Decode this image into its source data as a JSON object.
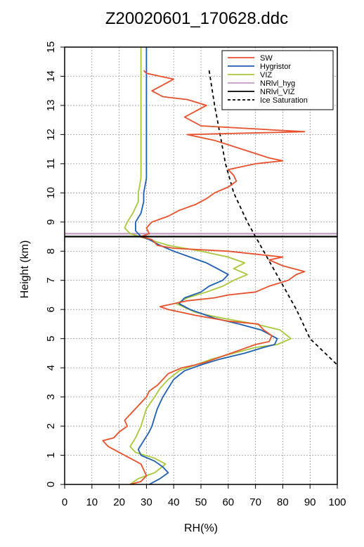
{
  "chart_data": {
    "type": "line",
    "title": "Z20020601_170628.ddc",
    "xlabel": "RH(%)",
    "ylabel": "Height (km)",
    "xlim": [
      0,
      100
    ],
    "ylim": [
      0,
      15
    ],
    "xticks": [
      "0",
      "10",
      "20",
      "30",
      "40",
      "50",
      "60",
      "70",
      "80",
      "90",
      "100"
    ],
    "yticks": [
      "0",
      "1",
      "2",
      "3",
      "4",
      "5",
      "6",
      "7",
      "8",
      "9",
      "10",
      "11",
      "12",
      "13",
      "14",
      "15"
    ],
    "grid": true,
    "legend_position": "top-right",
    "series": [
      {
        "name": "SW",
        "color": "#e8502c",
        "dash": "solid",
        "points": [
          [
            24,
            0
          ],
          [
            28,
            0.1
          ],
          [
            30,
            0.3
          ],
          [
            29,
            0.5
          ],
          [
            28,
            0.7
          ],
          [
            24,
            0.9
          ],
          [
            20,
            1.1
          ],
          [
            16,
            1.3
          ],
          [
            14,
            1.5
          ],
          [
            18,
            1.6
          ],
          [
            20,
            1.8
          ],
          [
            23,
            2
          ],
          [
            22,
            2.2
          ],
          [
            24,
            2.4
          ],
          [
            26,
            2.6
          ],
          [
            28,
            2.8
          ],
          [
            30,
            3
          ],
          [
            31,
            3.2
          ],
          [
            34,
            3.4
          ],
          [
            36,
            3.6
          ],
          [
            38,
            3.8
          ],
          [
            43,
            4
          ],
          [
            48,
            4.1
          ],
          [
            52,
            4.2
          ],
          [
            58,
            4.4
          ],
          [
            64,
            4.6
          ],
          [
            70,
            4.8
          ],
          [
            75,
            4.9
          ],
          [
            76,
            5.1
          ],
          [
            73,
            5.3
          ],
          [
            71,
            5.5
          ],
          [
            60,
            5.6
          ],
          [
            48,
            5.8
          ],
          [
            38,
            6
          ],
          [
            35,
            6.1
          ],
          [
            40,
            6.2
          ],
          [
            45,
            6.3
          ],
          [
            55,
            6.4
          ],
          [
            60,
            6.5
          ],
          [
            70,
            6.6
          ],
          [
            75,
            6.8
          ],
          [
            82,
            7
          ],
          [
            85,
            7.2
          ],
          [
            88,
            7.3
          ],
          [
            80,
            7.5
          ],
          [
            75,
            7.7
          ],
          [
            80,
            7.8
          ],
          [
            60,
            8
          ],
          [
            40,
            8.1
          ],
          [
            34,
            8.2
          ],
          [
            32,
            8.4
          ],
          [
            28,
            8.5
          ],
          [
            31,
            8.6
          ],
          [
            30,
            8.8
          ],
          [
            32,
            9
          ],
          [
            38,
            9.2
          ],
          [
            42,
            9.4
          ],
          [
            48,
            9.6
          ],
          [
            52,
            9.8
          ],
          [
            55,
            10
          ],
          [
            60,
            10.2
          ],
          [
            63,
            10.4
          ],
          [
            62,
            10.6
          ],
          [
            60,
            10.8
          ],
          [
            70,
            11
          ],
          [
            80,
            11.1
          ],
          [
            75,
            11.2
          ],
          [
            65,
            11.5
          ],
          [
            55,
            11.8
          ],
          [
            45,
            12
          ],
          [
            88,
            12.1
          ],
          [
            50,
            12.3
          ],
          [
            44,
            12.6
          ],
          [
            48,
            12.8
          ],
          [
            52,
            13
          ],
          [
            45,
            13.2
          ],
          [
            36,
            13.3
          ],
          [
            32,
            13.5
          ],
          [
            36,
            13.7
          ],
          [
            40,
            13.9
          ],
          [
            30,
            14.1
          ],
          [
            29,
            14.2
          ]
        ]
      },
      {
        "name": "Hygristor",
        "color": "#1f5fb0",
        "dash": "solid",
        "points": [
          [
            31,
            0
          ],
          [
            35,
            0.2
          ],
          [
            38,
            0.4
          ],
          [
            36,
            0.6
          ],
          [
            33,
            0.8
          ],
          [
            28,
            1
          ],
          [
            27,
            1.2
          ],
          [
            29,
            1.5
          ],
          [
            31,
            1.8
          ],
          [
            32,
            2
          ],
          [
            33,
            2.3
          ],
          [
            34,
            2.6
          ],
          [
            36,
            3
          ],
          [
            38,
            3.3
          ],
          [
            40,
            3.6
          ],
          [
            44,
            3.9
          ],
          [
            50,
            4.1
          ],
          [
            57,
            4.3
          ],
          [
            66,
            4.5
          ],
          [
            73,
            4.7
          ],
          [
            77,
            4.8
          ],
          [
            78,
            5
          ],
          [
            72,
            5.3
          ],
          [
            64,
            5.5
          ],
          [
            55,
            5.7
          ],
          [
            46,
            6
          ],
          [
            42,
            6.2
          ],
          [
            44,
            6.4
          ],
          [
            50,
            6.6
          ],
          [
            53,
            6.8
          ],
          [
            58,
            7
          ],
          [
            60,
            7.2
          ],
          [
            56,
            7.4
          ],
          [
            52,
            7.6
          ],
          [
            46,
            7.8
          ],
          [
            40,
            8
          ],
          [
            35,
            8.2
          ],
          [
            31,
            8.4
          ],
          [
            28,
            8.5
          ],
          [
            26,
            8.7
          ],
          [
            26,
            9
          ],
          [
            28,
            9.3
          ],
          [
            29,
            9.7
          ],
          [
            29,
            10
          ],
          [
            30,
            10.5
          ],
          [
            30,
            11
          ],
          [
            30,
            12
          ],
          [
            30,
            13
          ],
          [
            30,
            14
          ],
          [
            30,
            15
          ]
        ]
      },
      {
        "name": "VIZ",
        "color": "#a8c83a",
        "dash": "solid",
        "points": [
          [
            24,
            0
          ],
          [
            27,
            0.2
          ],
          [
            33,
            0.4
          ],
          [
            37,
            0.7
          ],
          [
            33,
            0.9
          ],
          [
            26,
            1.1
          ],
          [
            24,
            1.3
          ],
          [
            26,
            1.6
          ],
          [
            28,
            2
          ],
          [
            29,
            2.3
          ],
          [
            30,
            2.6
          ],
          [
            33,
            3
          ],
          [
            35,
            3.3
          ],
          [
            38,
            3.6
          ],
          [
            42,
            3.9
          ],
          [
            48,
            4.1
          ],
          [
            54,
            4.3
          ],
          [
            62,
            4.5
          ],
          [
            70,
            4.7
          ],
          [
            78,
            4.8
          ],
          [
            83,
            5
          ],
          [
            79,
            5.3
          ],
          [
            70,
            5.5
          ],
          [
            58,
            5.7
          ],
          [
            48,
            5.9
          ],
          [
            41,
            6.2
          ],
          [
            45,
            6.4
          ],
          [
            52,
            6.6
          ],
          [
            58,
            6.8
          ],
          [
            62,
            7
          ],
          [
            67,
            7.2
          ],
          [
            62,
            7.4
          ],
          [
            66,
            7.6
          ],
          [
            60,
            7.8
          ],
          [
            50,
            8
          ],
          [
            38,
            8.2
          ],
          [
            31,
            8.4
          ],
          [
            24,
            8.6
          ],
          [
            22,
            8.8
          ],
          [
            23,
            9
          ],
          [
            25,
            9.3
          ],
          [
            27,
            9.7
          ],
          [
            27,
            10
          ],
          [
            28,
            10.5
          ],
          [
            28,
            11
          ],
          [
            28,
            12
          ],
          [
            28,
            13
          ],
          [
            28,
            14
          ],
          [
            28,
            15
          ]
        ]
      },
      {
        "name": "NRlvl_hyg",
        "color": "#c49ac4",
        "dash": "solid",
        "points": [
          [
            0,
            8.6
          ],
          [
            100,
            8.6
          ]
        ]
      },
      {
        "name": "NRlvl_VIZ",
        "color": "#000000",
        "dash": "solid",
        "points": [
          [
            0,
            8.5
          ],
          [
            100,
            8.5
          ]
        ]
      },
      {
        "name": "Ice Saturation",
        "color": "#000000",
        "dash": "dashed",
        "points": [
          [
            53,
            14.2
          ],
          [
            55,
            13
          ],
          [
            57,
            12
          ],
          [
            59,
            11
          ],
          [
            62,
            10
          ],
          [
            67,
            9
          ],
          [
            73,
            8
          ],
          [
            79,
            7
          ],
          [
            85,
            6
          ],
          [
            90,
            5
          ],
          [
            100,
            4.1
          ]
        ]
      }
    ]
  }
}
